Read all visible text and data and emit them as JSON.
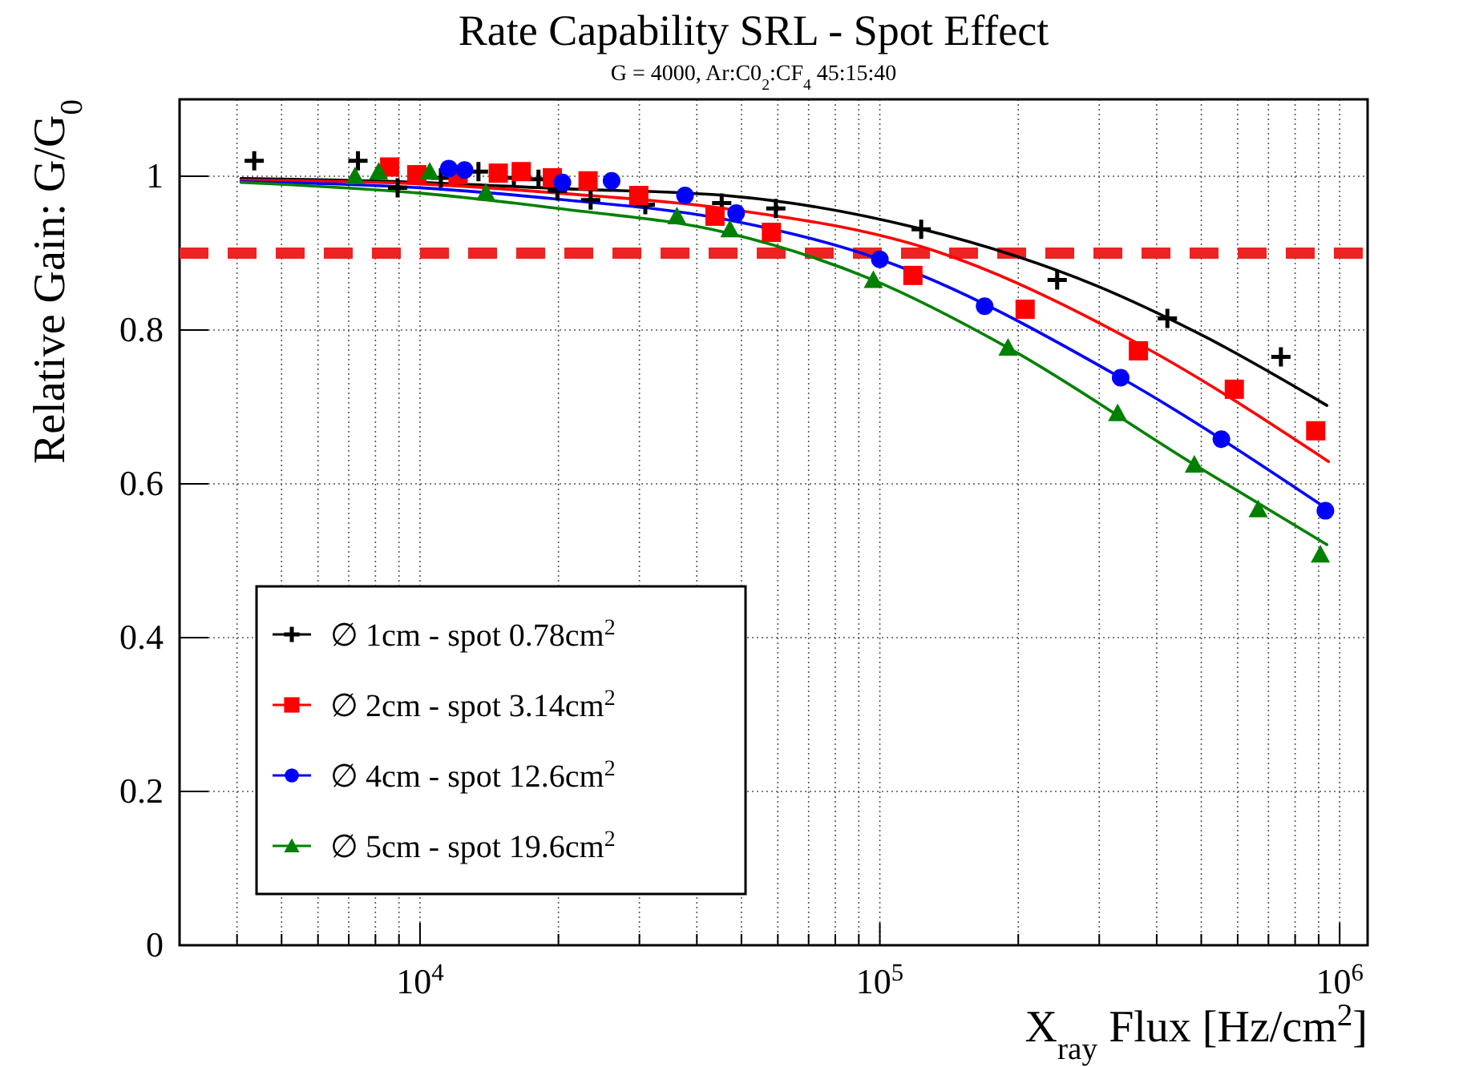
{
  "chart_data": {
    "type": "scatter",
    "title": "Rate Capability SRL - Spot Effect",
    "subtitle": "G = 4000, Ar:C0$_{2}$:CF$_{4}$ 45:15:40",
    "xlabel": "X$_{ray}$ Flux [Hz/cm$^{2}$]",
    "ylabel": "Relative Gain: G/G$_{0}$",
    "log": "x",
    "grid": true,
    "legend": "bottom left",
    "xlim": [
      3000,
      1150000
    ],
    "ylim": [
      0,
      1.1
    ],
    "xticks": [
      {
        "value": 4000,
        "label": null
      },
      {
        "value": 5000,
        "label": null
      },
      {
        "value": 6000,
        "label": null
      },
      {
        "value": 7000,
        "label": null
      },
      {
        "value": 8000,
        "label": null
      },
      {
        "value": 9000,
        "label": null
      },
      {
        "value": 10000,
        "label": "10$^{4}$"
      },
      {
        "value": 20000,
        "label": null
      },
      {
        "value": 30000,
        "label": null
      },
      {
        "value": 40000,
        "label": null
      },
      {
        "value": 50000,
        "label": null
      },
      {
        "value": 60000,
        "label": null
      },
      {
        "value": 70000,
        "label": null
      },
      {
        "value": 80000,
        "label": null
      },
      {
        "value": 90000,
        "label": null
      },
      {
        "value": 100000,
        "label": "10$^{5}$"
      },
      {
        "value": 200000,
        "label": null
      },
      {
        "value": 300000,
        "label": null
      },
      {
        "value": 400000,
        "label": null
      },
      {
        "value": 500000,
        "label": null
      },
      {
        "value": 600000,
        "label": null
      },
      {
        "value": 700000,
        "label": null
      },
      {
        "value": 800000,
        "label": null
      },
      {
        "value": 900000,
        "label": null
      },
      {
        "value": 1000000,
        "label": "10$^{6}$"
      }
    ],
    "yticks": [
      0,
      0.2,
      0.4,
      0.6,
      0.8,
      1
    ],
    "ref_lines": [
      {
        "axis": "y",
        "value": 0.9,
        "color": "#ee2222",
        "line_style": "dashed"
      }
    ],
    "series": [
      {
        "name": "∅ 1cm - spot 0.78cm$^{2}$",
        "marker": "cross",
        "color": "#000000",
        "x": [
          4360,
          7330,
          8940,
          11100,
          13400,
          16000,
          18100,
          19900,
          23500,
          30900,
          45300,
          59400,
          123000,
          243000,
          422000,
          745000
        ],
        "values": [
          1.02,
          1.02,
          0.985,
          0.998,
          1.006,
          0.998,
          0.996,
          0.981,
          0.969,
          0.963,
          0.965,
          0.958,
          0.931,
          0.865,
          0.815,
          0.765
        ]
      },
      {
        "name": "∅ 2cm - spot 3.14cm$^{2}$",
        "marker": "square",
        "color": "#ff0000",
        "x": [
          8590,
          9840,
          12100,
          14800,
          16600,
          19400,
          23200,
          29900,
          43800,
          58100,
          118000,
          207000,
          365000,
          590000,
          887000
        ],
        "values": [
          1.012,
          1.002,
          1.002,
          1.004,
          1.006,
          0.998,
          0.994,
          0.975,
          0.948,
          0.927,
          0.871,
          0.827,
          0.773,
          0.723,
          0.669
        ]
      },
      {
        "name": "∅ 4cm - spot 12.6cm$^{2}$",
        "marker": "circle",
        "color": "#0000ff",
        "x": [
          11550,
          12500,
          20400,
          26100,
          37700,
          48700,
          100000,
          169000,
          334000,
          553000,
          931000
        ],
        "values": [
          1.01,
          1.008,
          0.992,
          0.994,
          0.975,
          0.952,
          0.892,
          0.831,
          0.738,
          0.658,
          0.565
        ]
      },
      {
        "name": "∅ 5cm - spot 19.6cm$^{2}$",
        "marker": "triangle",
        "color": "#008000",
        "x": [
          7220,
          8130,
          10500,
          13900,
          36200,
          47200,
          96800,
          190000,
          329000,
          483000,
          665000,
          908000
        ],
        "values": [
          1.0,
          1.006,
          1.006,
          0.979,
          0.948,
          0.931,
          0.865,
          0.777,
          0.692,
          0.625,
          0.567,
          0.508
        ]
      },
      {
        "type": "line",
        "marker": "none",
        "color": "#000000",
        "x": [
          4080,
          10000,
          20000,
          46000,
          120000,
          295000,
          507000,
          938000
        ],
        "values": [
          0.997,
          0.992,
          0.984,
          0.975,
          0.933,
          0.858,
          0.792,
          0.702
        ]
      },
      {
        "type": "line",
        "marker": "none",
        "color": "#ff0000",
        "x": [
          4080,
          10000,
          20000,
          46000,
          133000,
          368000,
          946000
        ],
        "values": [
          0.995,
          0.99,
          0.978,
          0.958,
          0.902,
          0.781,
          0.629
        ]
      },
      {
        "type": "line",
        "marker": "none",
        "color": "#0000ff",
        "x": [
          4080,
          10000,
          20000,
          46000,
          100000,
          334000,
          931000
        ],
        "values": [
          0.993,
          0.985,
          0.97,
          0.944,
          0.892,
          0.738,
          0.569
        ]
      },
      {
        "type": "line",
        "marker": "none",
        "color": "#008000",
        "x": [
          4080,
          10000,
          20000,
          46000,
          96800,
          190000,
          483000,
          938000
        ],
        "values": [
          0.992,
          0.978,
          0.958,
          0.927,
          0.865,
          0.777,
          0.625,
          0.521
        ]
      }
    ]
  }
}
